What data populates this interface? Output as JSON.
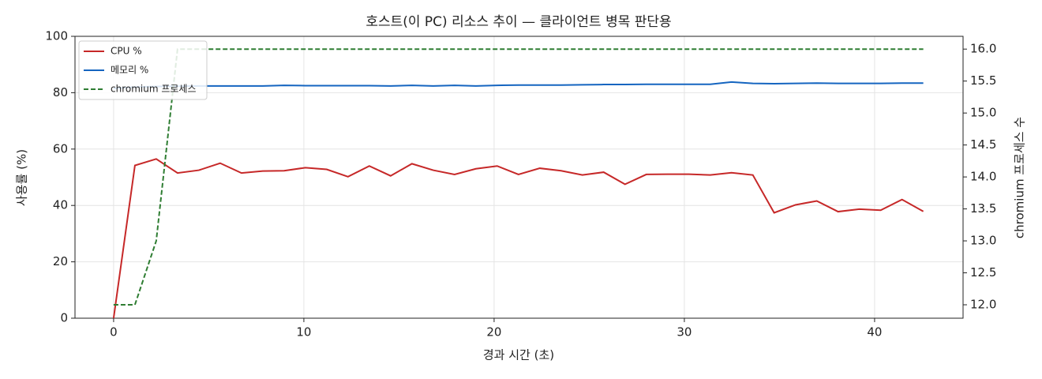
{
  "chart_data": {
    "type": "line",
    "title": "호스트(이 PC) 리소스 추이 — 클라이언트 병목 판단용",
    "xlabel": "경과 시간 (초)",
    "ylabel": "사용률 (%)",
    "y2label": "chromium 프로세스 수",
    "x": [
      0,
      1.12,
      2.24,
      3.36,
      4.48,
      5.6,
      6.72,
      7.84,
      8.96,
      10.08,
      11.2,
      12.32,
      13.44,
      14.56,
      15.68,
      16.8,
      17.92,
      19.04,
      20.16,
      21.28,
      22.4,
      23.52,
      24.64,
      25.76,
      26.88,
      28,
      29.12,
      30.24,
      31.36,
      32.48,
      33.6,
      34.72,
      35.84,
      36.96,
      38.08,
      39.2,
      40.32,
      41.44,
      42.56
    ],
    "series": [
      {
        "name": "CPU %",
        "color": "#c62828",
        "linestyle": "solid",
        "values": [
          0,
          54.2,
          56.5,
          51.5,
          52.5,
          55,
          51.5,
          52.2,
          52.3,
          53.4,
          52.8,
          50.2,
          54,
          50.5,
          54.8,
          52.5,
          51,
          53,
          54,
          51,
          53.2,
          52.3,
          50.8,
          51.8,
          47.5,
          51,
          51.1,
          51.1,
          50.8,
          51.6,
          50.8,
          37.4,
          40.2,
          41.6,
          37.8,
          38.7,
          38.3,
          42.1,
          37.9
        ]
      },
      {
        "name": "메모리 %",
        "color": "#1565c0",
        "linestyle": "solid",
        "values": [
          81.5,
          82,
          82.2,
          82.3,
          82.4,
          82.4,
          82.4,
          82.4,
          82.6,
          82.5,
          82.5,
          82.5,
          82.5,
          82.4,
          82.6,
          82.4,
          82.6,
          82.4,
          82.6,
          82.7,
          82.7,
          82.7,
          82.8,
          82.9,
          82.9,
          83,
          83,
          83,
          83,
          83.8,
          83.3,
          83.2,
          83.3,
          83.4,
          83.3,
          83.3,
          83.3,
          83.4,
          83.4
        ]
      },
      {
        "name": "chromium 프로세스",
        "color": "#2e7d32",
        "linestyle": "dashed",
        "axis": "y2",
        "values": [
          12,
          12,
          13,
          16,
          16,
          16,
          16,
          16,
          16,
          16,
          16,
          16,
          16,
          16,
          16,
          16,
          16,
          16,
          16,
          16,
          16,
          16,
          16,
          16,
          16,
          16,
          16,
          16,
          16,
          16,
          16,
          16,
          16,
          16,
          16,
          16,
          16,
          16,
          16
        ]
      }
    ],
    "xlim": [
      -2.03,
      44.65
    ],
    "xticks": [
      0,
      10,
      20,
      30,
      40
    ],
    "ylim": [
      0,
      100
    ],
    "yticks": [
      0,
      20,
      40,
      60,
      80,
      100
    ],
    "y2lim": [
      11.79,
      16.2
    ],
    "y2ticks": [
      {
        "value": 12,
        "label": "12.0"
      },
      {
        "value": 12.5,
        "label": "12.5"
      },
      {
        "value": 13,
        "label": "13.0"
      },
      {
        "value": 13.5,
        "label": "13.5"
      },
      {
        "value": 14,
        "label": "14.0"
      },
      {
        "value": 14.5,
        "label": "14.5"
      },
      {
        "value": 15,
        "label": "15.0"
      },
      {
        "value": 15.5,
        "label": "15.5"
      },
      {
        "value": 16,
        "label": "16.0"
      }
    ],
    "grid": true,
    "legend": "upper-left"
  }
}
